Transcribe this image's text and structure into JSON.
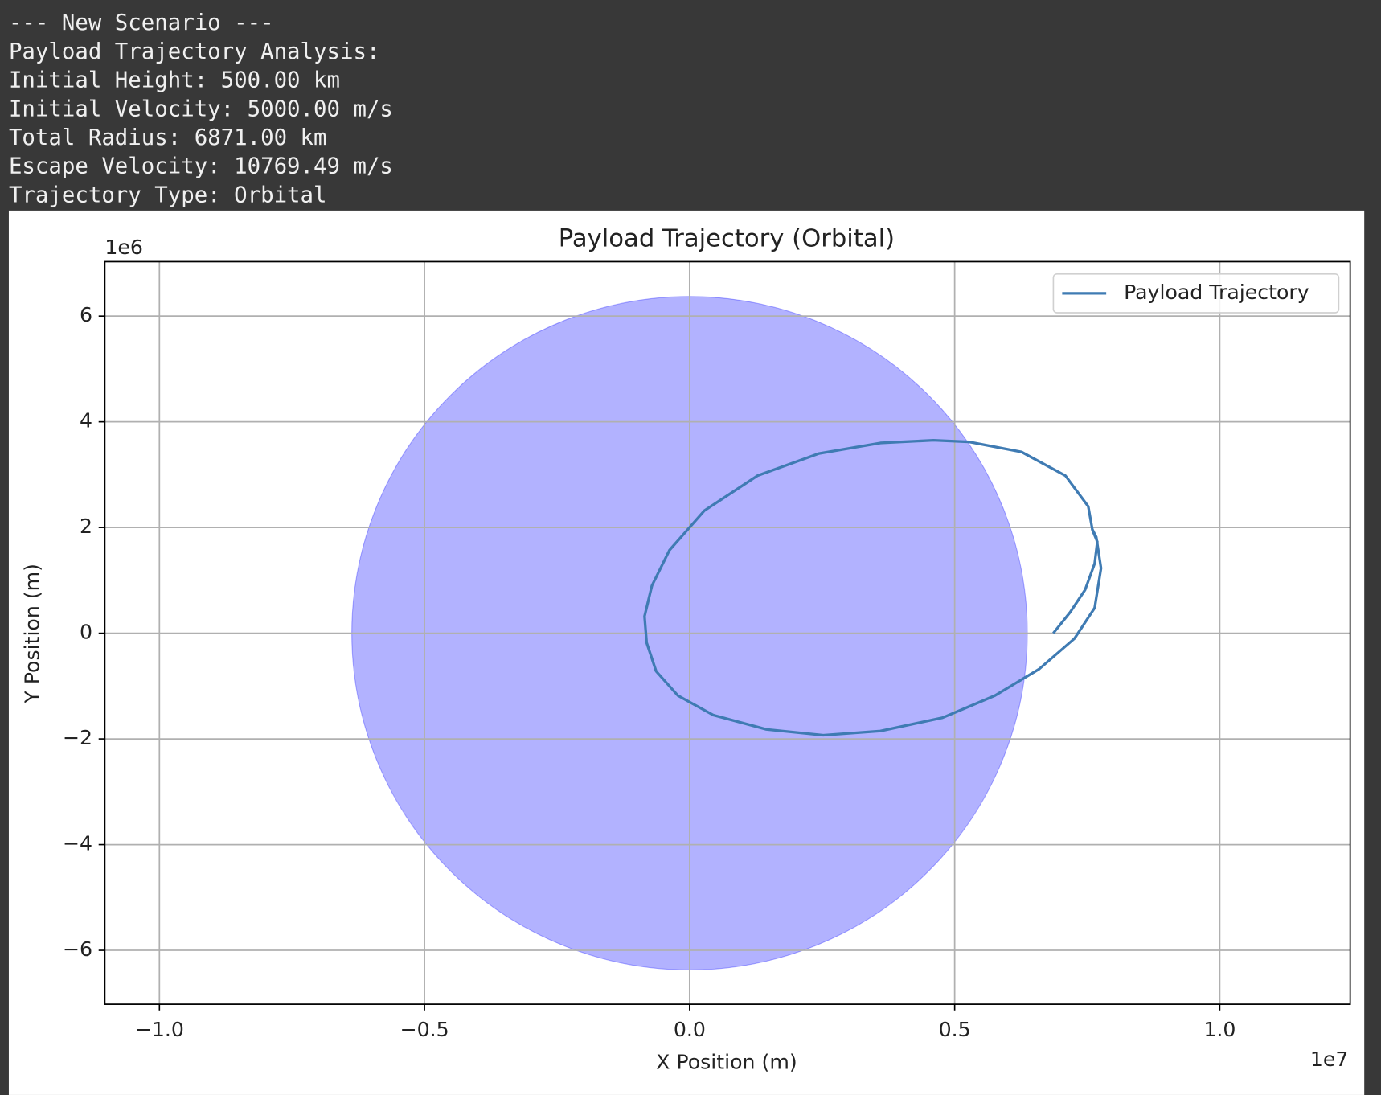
{
  "console": {
    "lines": [
      "--- New Scenario ---",
      "Payload Trajectory Analysis:",
      "Initial Height: 500.00 km",
      "Initial Velocity: 5000.00 m/s",
      "Total Radius: 6871.00 km",
      "Escape Velocity: 10769.49 m/s",
      "Trajectory Type: Orbital"
    ]
  },
  "chart_data": {
    "type": "line",
    "title": "Payload Trajectory (Orbital)",
    "x_label": "X Position (m)",
    "y_label": "Y Position (m)",
    "x_offset_label": "1e7",
    "y_offset_label": "1e6",
    "xlim": [
      -11030000,
      12460000
    ],
    "ylim": [
      -7020000,
      7030000
    ],
    "xticks": [
      {
        "value": -10000000,
        "label": "−1.0"
      },
      {
        "value": -5000000,
        "label": "−0.5"
      },
      {
        "value": 0,
        "label": "0.0"
      },
      {
        "value": 5000000,
        "label": "0.5"
      },
      {
        "value": 10000000,
        "label": "1.0"
      }
    ],
    "yticks": [
      {
        "value": -6000000,
        "label": "−6"
      },
      {
        "value": -4000000,
        "label": "−4"
      },
      {
        "value": -2000000,
        "label": "−2"
      },
      {
        "value": 0,
        "label": "0"
      },
      {
        "value": 2000000,
        "label": "2"
      },
      {
        "value": 4000000,
        "label": "4"
      },
      {
        "value": 6000000,
        "label": "6"
      }
    ],
    "grid": true,
    "legend": "upper right",
    "circle": {
      "radius": 6371000,
      "color": "#0000ff",
      "opacity": 0.3
    },
    "x": [
      6860000,
      7180000,
      7460000,
      7640000,
      7690000,
      7600000,
      7520000,
      7090000,
      6260000,
      5270000,
      4600000,
      3600000,
      2440000,
      1280000,
      280000,
      -380000,
      -710000,
      -850000,
      -810000,
      -630000,
      -220000,
      450000,
      1450000,
      2520000,
      3600000,
      4770000,
      5760000,
      6590000,
      7260000,
      7640000,
      7760000,
      7670000,
      7590000
    ],
    "series": [
      {
        "name": "Payload Trajectory",
        "color": "#3f7bb3",
        "values": [
          0,
          400000,
          820000,
          1320000,
          1730000,
          1950000,
          2400000,
          2980000,
          3430000,
          3620000,
          3650000,
          3600000,
          3400000,
          2980000,
          2320000,
          1570000,
          900000,
          320000,
          -180000,
          -720000,
          -1180000,
          -1550000,
          -1820000,
          -1930000,
          -1850000,
          -1600000,
          -1180000,
          -680000,
          -100000,
          480000,
          1230000,
          1820000,
          1980000
        ]
      }
    ]
  }
}
